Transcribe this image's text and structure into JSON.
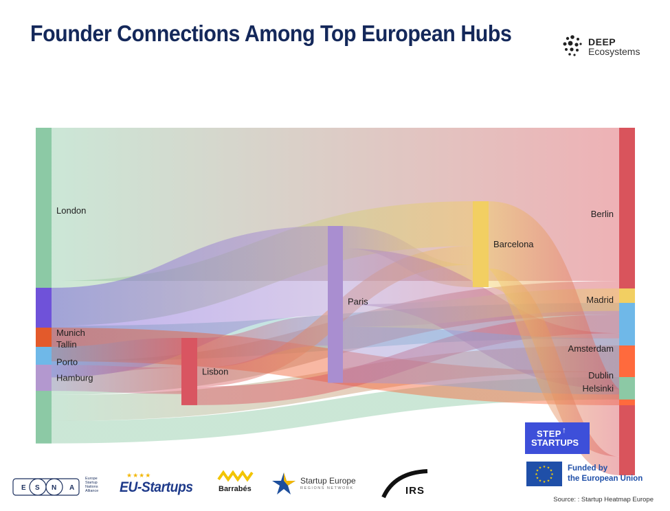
{
  "title": "Founder Connections Among Top European Hubs",
  "brand": {
    "line1": "DEEP",
    "line2": "Ecosystems"
  },
  "chart_data": {
    "type": "sankey",
    "nodes": [
      {
        "id": "London",
        "label": "London",
        "color": "#8cc9a5",
        "column": 0
      },
      {
        "id": "Munich",
        "label": "Munich",
        "color": "#6f52d9",
        "column": 0
      },
      {
        "id": "Tallin",
        "label": "Tallin",
        "color": "#e35a2b",
        "column": 0
      },
      {
        "id": "Porto",
        "label": "Porto",
        "color": "#6fb8e8",
        "column": 0
      },
      {
        "id": "Hamburg",
        "label": "Hamburg",
        "color": "#b398cf",
        "column": 0
      },
      {
        "id": "Lisbon",
        "label": "Lisbon",
        "color": "#d95561",
        "column": 1
      },
      {
        "id": "Paris",
        "label": "Paris",
        "color": "#a98ed0",
        "column": 2
      },
      {
        "id": "Barcelona",
        "label": "Barcelona",
        "color": "#f2cf62",
        "column": 3
      },
      {
        "id": "Berlin",
        "label": "Berlin",
        "color": "#d9545c",
        "column": 4
      },
      {
        "id": "Madrid",
        "label": "Madrid",
        "color": "#f2cf62",
        "column": 4
      },
      {
        "id": "Amsterdam",
        "label": "Amsterdam",
        "color": "#6fb8e8",
        "column": 4
      },
      {
        "id": "Dublin",
        "label": "Dublin",
        "color": "#ff6a3d",
        "column": 4
      },
      {
        "id": "Helsinki",
        "label": "Helsinki",
        "color": "#8cc9a5",
        "column": 4
      }
    ],
    "links": [
      {
        "source": "London",
        "target": "Berlin",
        "value": 82
      },
      {
        "source": "London",
        "target": "Barcelona",
        "value": 24
      },
      {
        "source": "London",
        "target": "Amsterdam",
        "value": 19
      },
      {
        "source": "London",
        "target": "Berlin",
        "value": 18
      },
      {
        "source": "London",
        "target": "Dublin",
        "value": 14
      },
      {
        "source": "London",
        "target": "Helsinki",
        "value": 12
      },
      {
        "source": "Munich",
        "target": "Paris",
        "value": 48
      },
      {
        "source": "Tallin",
        "target": "Dublin",
        "value": 18
      },
      {
        "source": "Porto",
        "target": "Lisbon",
        "value": 16
      },
      {
        "source": "Hamburg",
        "target": "Lisbon",
        "value": 14
      },
      {
        "source": "Lisbon",
        "target": "Paris",
        "value": 16
      },
      {
        "source": "Lisbon",
        "target": "Barcelona",
        "value": 10
      },
      {
        "source": "Lisbon",
        "target": "Berlin",
        "value": 10
      },
      {
        "source": "Paris",
        "target": "Barcelona",
        "value": 12
      },
      {
        "source": "Paris",
        "target": "Berlin",
        "value": 30
      },
      {
        "source": "Paris",
        "target": "Madrid",
        "value": 12
      },
      {
        "source": "Paris",
        "target": "Amsterdam",
        "value": 30
      },
      {
        "source": "Barcelona",
        "target": "Berlin",
        "value": 36
      },
      {
        "source": "Barcelona",
        "target": "Berlin",
        "value": 10
      }
    ]
  },
  "logos": {
    "esna_letters": [
      "E",
      "S",
      "N",
      "A"
    ],
    "esna_text": [
      "Europe",
      "Startup",
      "Nations",
      "Alliance"
    ],
    "eu_startups": "EU-Startups",
    "barrabes": "Barrabés",
    "startup_europe": "Startup Europe",
    "startup_europe_sub": "REGIONS NETWORK",
    "irs": "IRS",
    "step_line1": "STEP",
    "step_line2": "STARTUPS",
    "eu_funded_line1": "Funded by",
    "eu_funded_line2": "the European Union"
  },
  "source": "Source: : Startup Heatmap Europe"
}
